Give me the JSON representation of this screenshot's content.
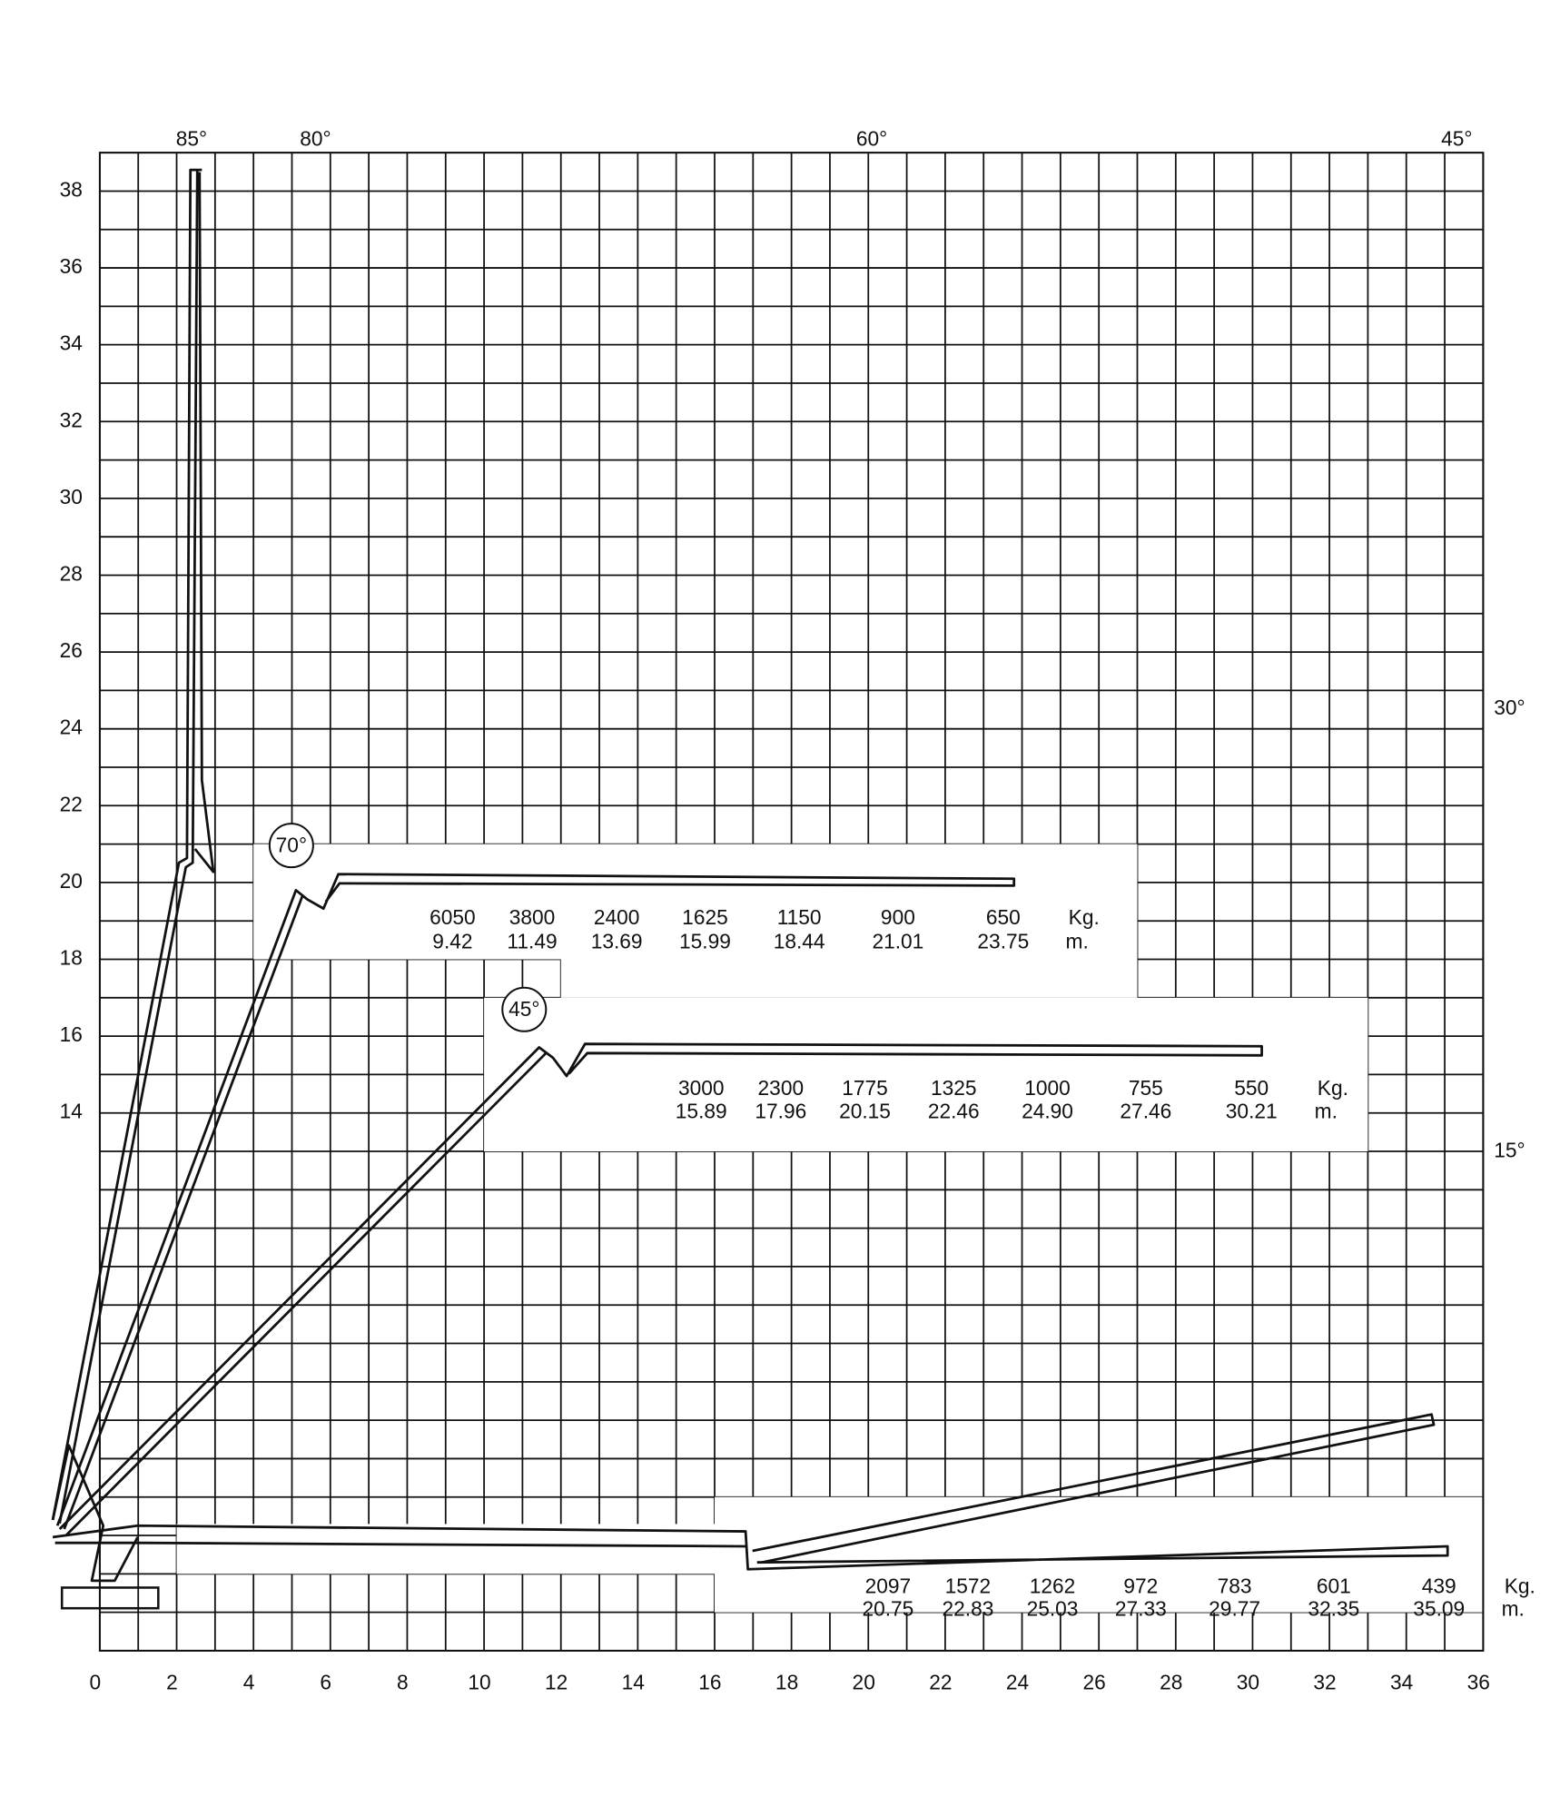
{
  "chart_data": {
    "type": "crane-load-chart",
    "xlim": [
      0,
      36
    ],
    "ylim": [
      0,
      39
    ],
    "xticks": [
      0,
      2,
      4,
      6,
      8,
      10,
      12,
      14,
      16,
      18,
      20,
      22,
      24,
      26,
      28,
      30,
      32,
      34,
      36
    ],
    "yticks": [
      14,
      16,
      18,
      20,
      22,
      24,
      26,
      28,
      30,
      32,
      34,
      36,
      38
    ],
    "grid": true,
    "angle_labels": [
      "85°",
      "80°",
      "60°",
      "45°",
      "30°",
      "15°"
    ],
    "load_tables": [
      {
        "label": "70°",
        "load_unit": "Kg.",
        "radius_unit": "m.",
        "loads": [
          6050,
          3800,
          2400,
          1625,
          1150,
          900,
          650
        ],
        "radii": [
          9.42,
          11.49,
          13.69,
          15.99,
          18.44,
          21.01,
          23.75
        ]
      },
      {
        "label": "45°",
        "load_unit": "Kg.",
        "radius_unit": "m.",
        "loads": [
          3000,
          2300,
          1775,
          1325,
          1000,
          755,
          550
        ],
        "radii": [
          15.89,
          17.96,
          20.15,
          22.46,
          24.9,
          27.46,
          30.21
        ],
        "radii_labels": [
          "15.89",
          "17.96",
          "20.15",
          "22.46",
          "24.90",
          "27.46",
          "30.21"
        ]
      },
      {
        "load_unit": "Kg.",
        "radius_unit": "m.",
        "loads": [
          2097,
          1572,
          1262,
          972,
          783,
          601,
          439
        ],
        "radii": [
          20.75,
          22.83,
          25.03,
          27.33,
          29.77,
          32.35,
          35.09
        ]
      }
    ]
  }
}
